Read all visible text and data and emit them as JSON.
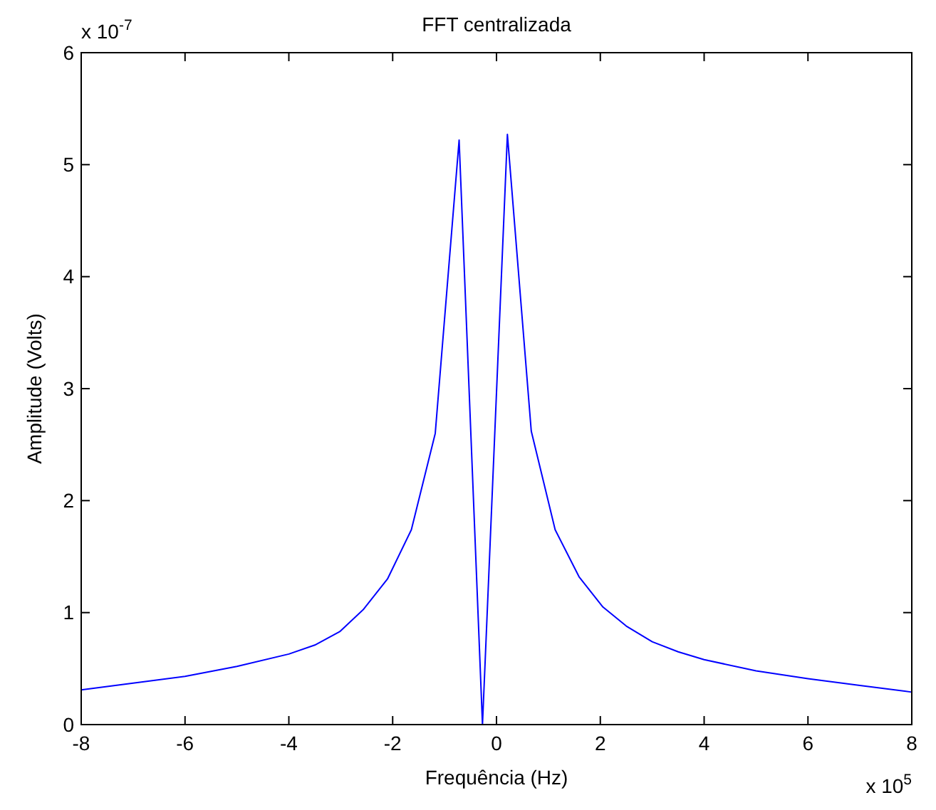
{
  "chart_data": {
    "type": "line",
    "title": "FFT centralizada",
    "xlabel": "Frequência (Hz)",
    "ylabel": "Amplitude (Volts)",
    "annotations": [
      "x 10$^{-7}$",
      "x 10$^{5}$"
    ],
    "series": [
      {
        "color": "#0000ff",
        "x": [
          -8,
          -7,
          -6,
          -5,
          -4,
          -3.5,
          -3.02,
          -2.56,
          -2.1,
          -1.64,
          -1.18,
          -0.72,
          -0.27,
          0.21,
          0.67,
          1.13,
          1.59,
          2.05,
          2.5,
          3,
          3.5,
          4,
          5,
          6,
          7,
          8
        ],
        "values": [
          0.31,
          0.37,
          0.43,
          0.52,
          0.63,
          0.71,
          0.83,
          1.03,
          1.3,
          1.74,
          2.6,
          5.22,
          0,
          5.27,
          2.62,
          1.74,
          1.32,
          1.05,
          0.88,
          0.74,
          0.65,
          0.58,
          0.48,
          0.41,
          0.35,
          0.29
        ]
      }
    ],
    "xlim": [
      -8,
      8
    ],
    "xticks": [
      -8,
      -6,
      -4,
      -2,
      0,
      2,
      4,
      6,
      8
    ],
    "ylim": [
      0,
      6
    ],
    "yticks": [
      0,
      1,
      2,
      3,
      4,
      5,
      6
    ],
    "grid": false,
    "marker": "none",
    "line_style": "solid"
  }
}
